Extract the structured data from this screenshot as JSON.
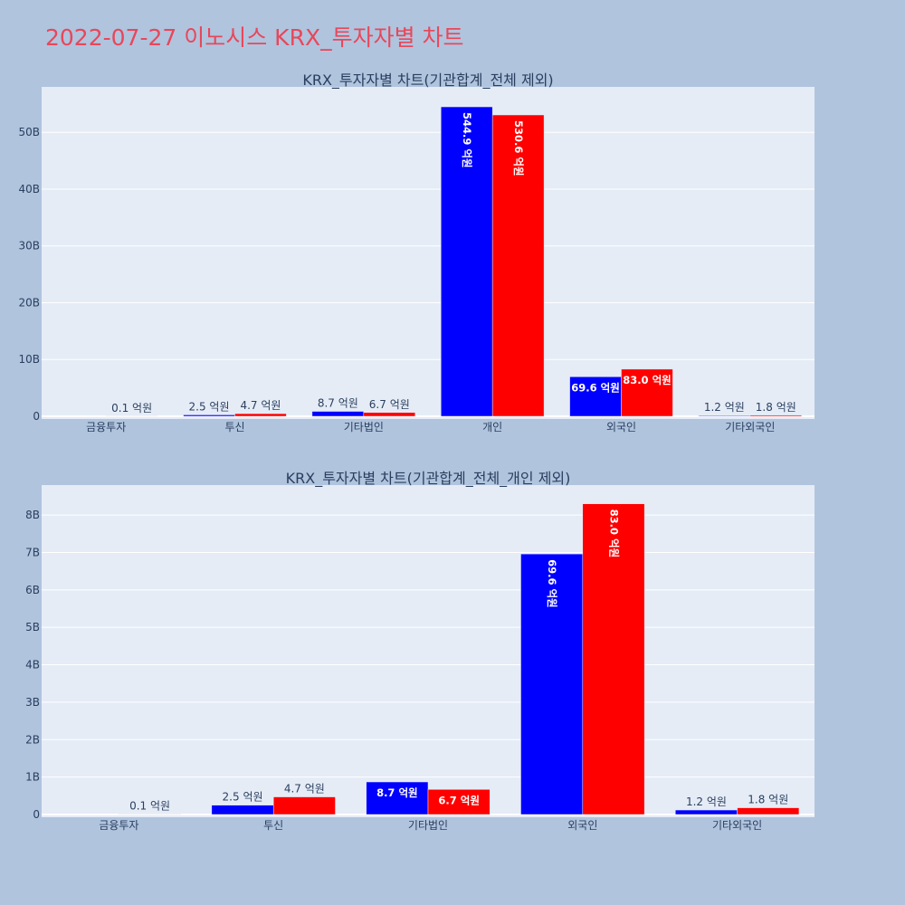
{
  "page_title": "2022-07-27 이노시스 KRX_투자자별 차트",
  "colors": {
    "buy": "#0000ff",
    "sell": "#ff0000",
    "plot_bg": "#e5ecf6",
    "page_bg": "#b0c4de"
  },
  "chart_data": [
    {
      "type": "bar",
      "title": "KRX_투자자별 차트(기관합계_전체 제외)",
      "categories": [
        "금융투자",
        "투신",
        "기타법인",
        "개인",
        "외국인",
        "기타외국인"
      ],
      "series": [
        {
          "color": "#0000ff",
          "values": [
            0,
            250000000,
            870000000,
            54490000000,
            6960000000,
            120000000
          ],
          "labels": [
            "",
            "2.5 억원",
            "8.7 억원",
            "544.9 억원",
            "69.6 억원",
            "1.2 억원"
          ]
        },
        {
          "color": "#ff0000",
          "values": [
            10000000,
            470000000,
            670000000,
            53060000000,
            8300000000,
            180000000
          ],
          "labels": [
            "0.1 억원",
            "4.7 억원",
            "6.7 억원",
            "530.6 억원",
            "83.0 억원",
            "1.8 억원"
          ]
        }
      ],
      "yticks": [
        0,
        10000000000,
        20000000000,
        30000000000,
        40000000000,
        50000000000
      ],
      "ytick_labels": [
        "0",
        "10B",
        "20B",
        "30B",
        "40B",
        "50B"
      ],
      "ylim": [
        0,
        58000000000
      ],
      "grid": true,
      "legend": "none"
    },
    {
      "type": "bar",
      "title": "KRX_투자자별 차트(기관합계_전체_개인 제외)",
      "categories": [
        "금융투자",
        "투신",
        "기타법인",
        "외국인",
        "기타외국인"
      ],
      "series": [
        {
          "color": "#0000ff",
          "values": [
            0,
            250000000,
            870000000,
            6960000000,
            120000000
          ],
          "labels": [
            "",
            "2.5 억원",
            "8.7 억원",
            "69.6 억원",
            "1.2 억원"
          ]
        },
        {
          "color": "#ff0000",
          "values": [
            10000000,
            470000000,
            670000000,
            8300000000,
            180000000
          ],
          "labels": [
            "0.1 억원",
            "4.7 억원",
            "6.7 억원",
            "83.0 억원",
            "1.8 억원"
          ]
        }
      ],
      "yticks": [
        0,
        1000000000,
        2000000000,
        3000000000,
        4000000000,
        5000000000,
        6000000000,
        7000000000,
        8000000000
      ],
      "ytick_labels": [
        "0",
        "1B",
        "2B",
        "3B",
        "4B",
        "5B",
        "6B",
        "7B",
        "8B"
      ],
      "ylim": [
        0,
        8800000000
      ],
      "grid": true,
      "legend": "none"
    }
  ]
}
